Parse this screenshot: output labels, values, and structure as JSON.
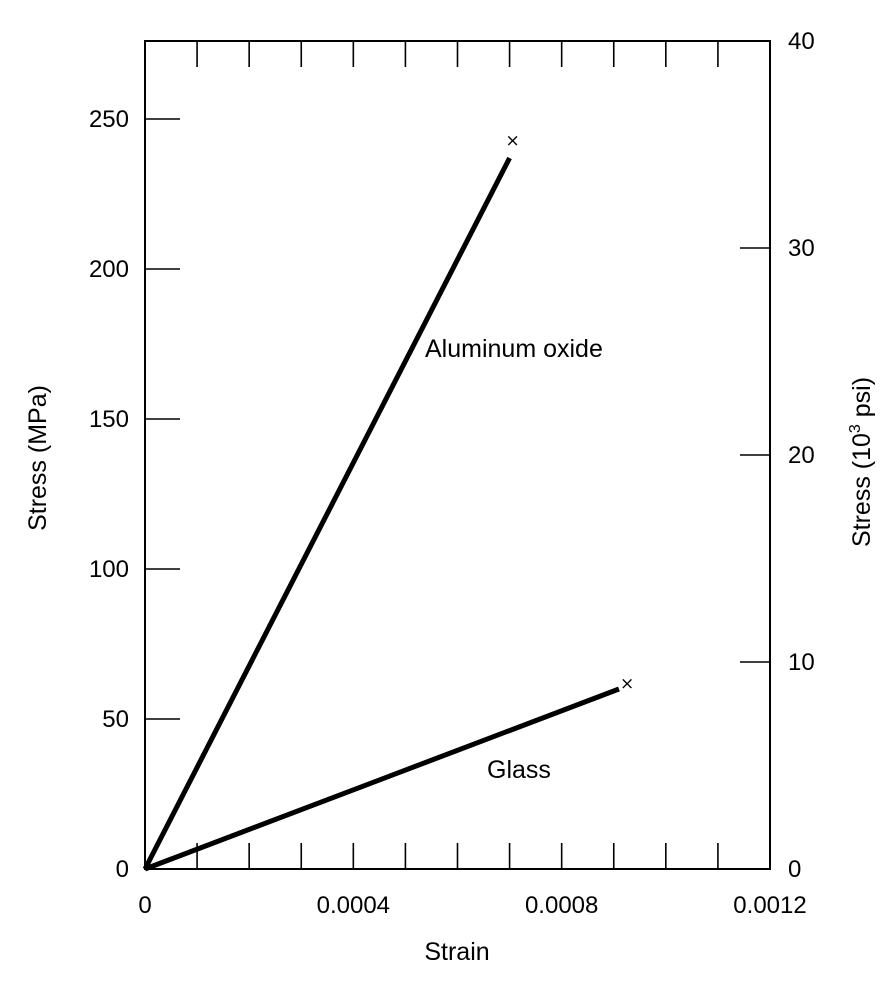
{
  "chart_data": {
    "type": "line",
    "x_axis": {
      "label": "Strain",
      "range": [
        0,
        0.0012
      ],
      "ticks": [
        0,
        0.0004,
        0.0008,
        0.0012
      ],
      "tick_labels": [
        "0",
        "0.0004",
        "0.0008",
        "0.0012"
      ],
      "minor_tick_step": 0.0001
    },
    "y_axis_left": {
      "label": "Stress (MPa)",
      "range": [
        0,
        276
      ],
      "ticks": [
        0,
        50,
        100,
        150,
        200,
        250
      ],
      "tick_labels": [
        "0",
        "50",
        "100",
        "150",
        "200",
        "250"
      ]
    },
    "y_axis_right": {
      "label_main": "Stress (10",
      "label_sup": "3",
      "label_end": " psi)",
      "range": [
        0,
        40
      ],
      "ticks": [
        0,
        10,
        20,
        30,
        40
      ],
      "tick_labels": [
        "0",
        "10",
        "20",
        "30",
        "40"
      ]
    },
    "series": [
      {
        "name": "Aluminum oxide",
        "x": [
          0,
          0.0007
        ],
        "y": [
          0,
          237
        ],
        "fracture_point": [
          0.0007,
          243
        ],
        "fracture_marker": "×"
      },
      {
        "name": "Glass",
        "x": [
          0,
          0.00091
        ],
        "y": [
          0,
          60
        ],
        "fracture_point": [
          0.00092,
          62
        ],
        "fracture_marker": "×"
      }
    ],
    "grid": false,
    "legend": "none"
  }
}
